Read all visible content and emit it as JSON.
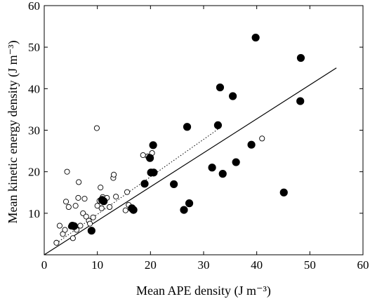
{
  "chart_data": {
    "type": "scatter",
    "xlabel": "Mean APE density (J m⁻³)",
    "ylabel": "Mean kinetic energy density (J m⁻³)",
    "xlim": [
      0,
      60
    ],
    "ylim": [
      0,
      60
    ],
    "xticks": [
      "0",
      "10",
      "20",
      "30",
      "40",
      "50",
      "60"
    ],
    "yticks": [
      "10",
      "20",
      "30",
      "40",
      "50",
      "60"
    ],
    "grid": false,
    "series": [
      {
        "marker": "open-circle",
        "points": [
          [
            2.3,
            2.9
          ],
          [
            2.9,
            7.0
          ],
          [
            3.5,
            5.0
          ],
          [
            3.9,
            6.0
          ],
          [
            4.1,
            12.8
          ],
          [
            4.3,
            20.0
          ],
          [
            4.6,
            11.5
          ],
          [
            5.0,
            6.8
          ],
          [
            5.4,
            4.0
          ],
          [
            5.8,
            7.0
          ],
          [
            5.9,
            11.8
          ],
          [
            6.1,
            6.0
          ],
          [
            6.4,
            13.7
          ],
          [
            6.5,
            17.5
          ],
          [
            6.8,
            7.0
          ],
          [
            7.3,
            10.0
          ],
          [
            7.6,
            13.5
          ],
          [
            7.9,
            9.2
          ],
          [
            8.4,
            8.2
          ],
          [
            8.6,
            7.5
          ],
          [
            9.2,
            9.0
          ],
          [
            9.9,
            30.5
          ],
          [
            10.0,
            11.8
          ],
          [
            10.4,
            13.0
          ],
          [
            10.6,
            16.2
          ],
          [
            10.8,
            11.2
          ],
          [
            11.0,
            13.9
          ],
          [
            11.8,
            13.7
          ],
          [
            12.3,
            11.5
          ],
          [
            13.0,
            18.5
          ],
          [
            13.1,
            19.3
          ],
          [
            13.5,
            14.0
          ],
          [
            15.3,
            10.7
          ],
          [
            15.6,
            15.1
          ],
          [
            15.9,
            12.0
          ],
          [
            18.6,
            24.0
          ],
          [
            19.5,
            23.7
          ],
          [
            20.3,
            24.5
          ],
          [
            20.6,
            20.0
          ],
          [
            41.0,
            28.0
          ]
        ]
      },
      {
        "marker": "filled-circle",
        "points": [
          [
            5.3,
            7.0
          ],
          [
            5.6,
            6.9
          ],
          [
            8.9,
            5.8
          ],
          [
            10.9,
            13.2
          ],
          [
            11.2,
            12.9
          ],
          [
            16.5,
            11.2
          ],
          [
            16.8,
            10.8
          ],
          [
            18.9,
            17.1
          ],
          [
            19.9,
            23.3
          ],
          [
            20.1,
            19.8
          ],
          [
            20.5,
            26.4
          ],
          [
            20.6,
            19.8
          ],
          [
            24.4,
            17.0
          ],
          [
            26.3,
            10.8
          ],
          [
            26.9,
            30.8
          ],
          [
            27.3,
            12.4
          ],
          [
            31.6,
            21.0
          ],
          [
            32.7,
            31.2
          ],
          [
            33.1,
            40.3
          ],
          [
            33.6,
            19.5
          ],
          [
            35.5,
            38.2
          ],
          [
            36.1,
            22.3
          ],
          [
            39.0,
            26.5
          ],
          [
            39.8,
            52.3
          ],
          [
            45.1,
            15.0
          ],
          [
            48.2,
            37.0
          ],
          [
            48.3,
            47.4
          ]
        ]
      }
    ],
    "lines": [
      {
        "style": "solid",
        "points": [
          [
            0,
            0
          ],
          [
            55,
            45
          ]
        ]
      },
      {
        "style": "dotted",
        "points": [
          [
            2.3,
            2.8
          ],
          [
            33.0,
            30.5
          ]
        ]
      }
    ]
  }
}
